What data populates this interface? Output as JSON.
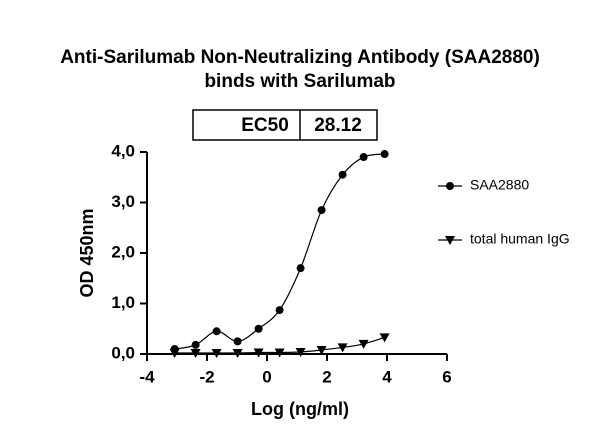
{
  "chart_data": {
    "type": "scatter",
    "title": [
      "Anti-Sarilumab Non-Neutralizing Antibody (SAA2880)",
      "binds with Sarilumab"
    ],
    "table": [
      "EC50",
      "28.12"
    ],
    "x_label": "Log (ng/ml)",
    "y_label": "OD 450nm",
    "xlim": [
      -4,
      6
    ],
    "xticks": [
      -4,
      -2,
      0,
      2,
      4,
      6
    ],
    "ylim": [
      0,
      4
    ],
    "yticks": [
      {
        "value": 0,
        "label": "0,0"
      },
      {
        "value": 1,
        "label": "1,0"
      },
      {
        "value": 2,
        "label": "2,0"
      },
      {
        "value": 3,
        "label": "3,0"
      },
      {
        "value": 4,
        "label": "4,0"
      }
    ],
    "series": [
      {
        "name": "SAA2880",
        "color": "#000000",
        "marker": "circle",
        "x": [
          -3.08,
          -2.38,
          -1.68,
          -0.98,
          -0.28,
          0.42,
          1.12,
          1.82,
          2.52,
          3.22,
          3.92
        ],
        "values": [
          0.1,
          0.18,
          0.45,
          0.25,
          0.5,
          0.87,
          1.7,
          2.85,
          3.55,
          3.9,
          3.96
        ]
      },
      {
        "name": "total human IgG",
        "color": "#000000",
        "marker": "triangle-down",
        "x": [
          -3.08,
          -2.38,
          -1.68,
          -0.98,
          -0.28,
          0.42,
          1.12,
          1.82,
          2.52,
          3.22,
          3.92
        ],
        "values": [
          0.02,
          0.02,
          0.02,
          0.02,
          0.03,
          0.03,
          0.04,
          0.08,
          0.13,
          0.2,
          0.33
        ]
      }
    ]
  }
}
